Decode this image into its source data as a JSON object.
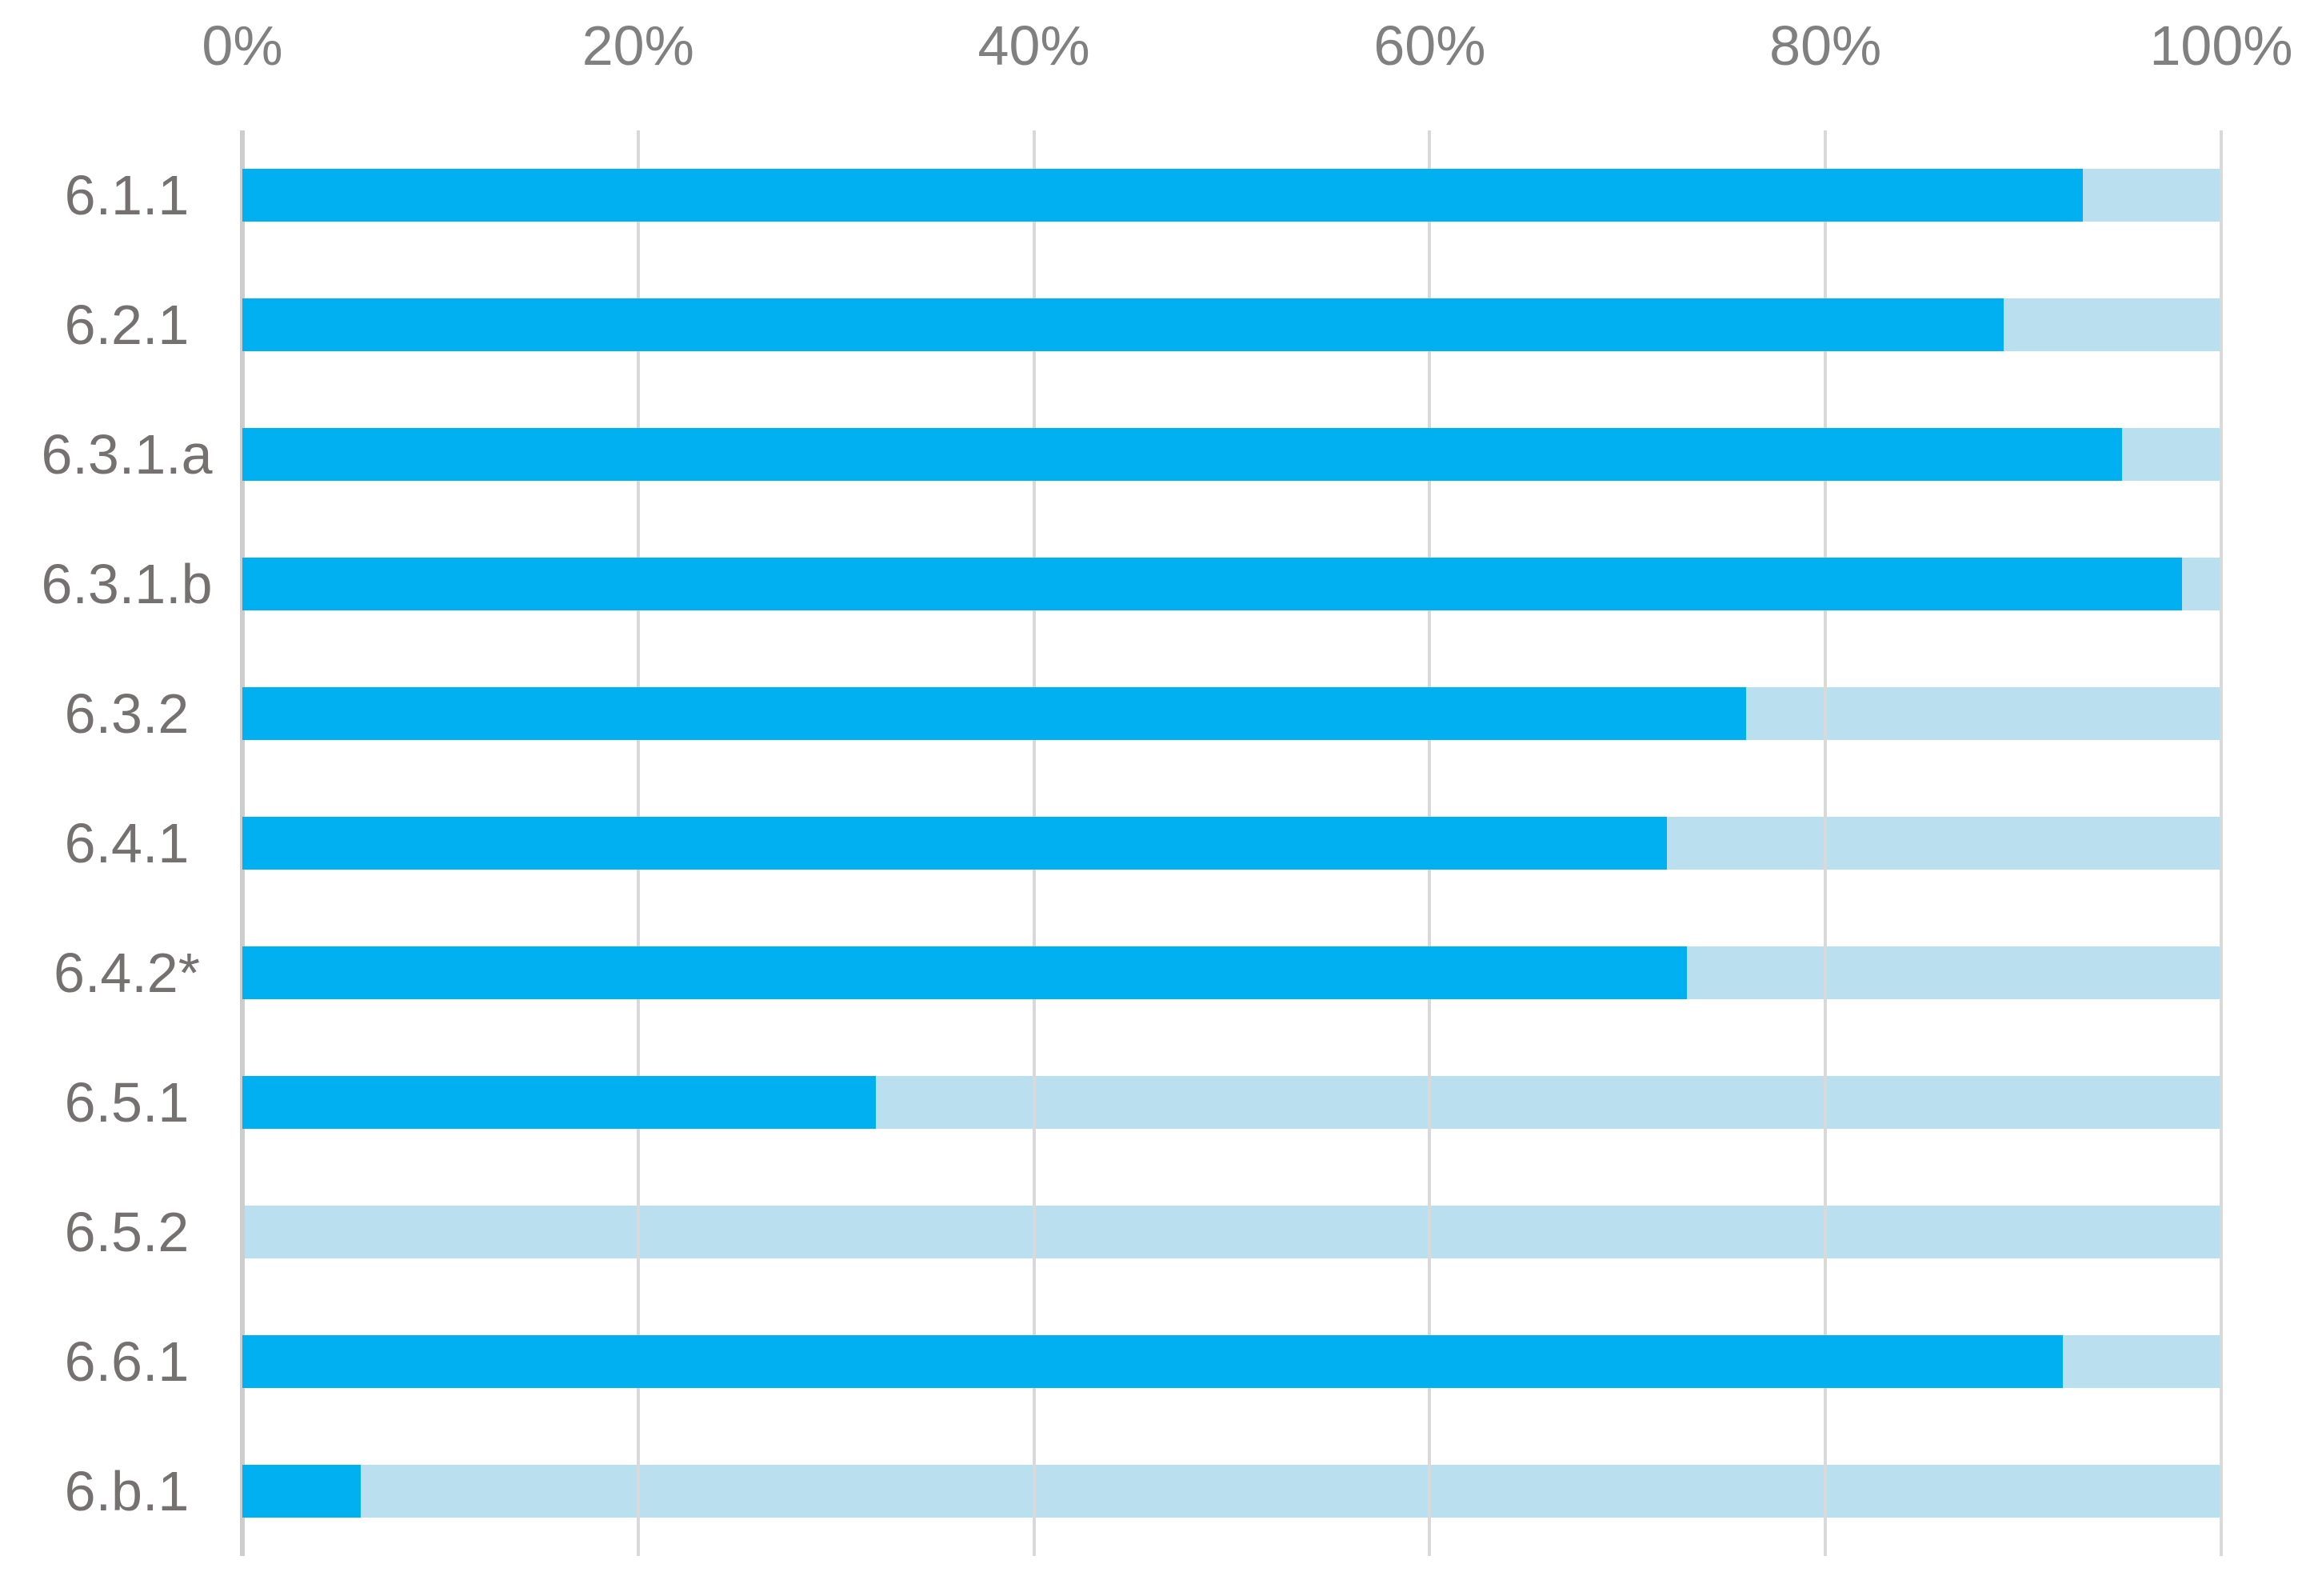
{
  "chart_data": {
    "type": "bar",
    "orientation": "horizontal",
    "stacked": true,
    "title": "",
    "categories": [
      "6.1.1",
      "6.2.1",
      "6.3.1.a",
      "6.3.1.b",
      "6.3.2",
      "6.4.1",
      "6.4.2*",
      "6.5.1",
      "6.5.2",
      "6.6.1",
      "6.b.1"
    ],
    "series": [
      {
        "name": "dark-blue",
        "color": "#00B0F0",
        "values": [
          93,
          89,
          95,
          98,
          76,
          72,
          73,
          32,
          0,
          92,
          6
        ]
      },
      {
        "name": "light-blue",
        "color": "#BADFEF",
        "values": [
          7,
          11,
          5,
          2,
          24,
          28,
          27,
          68,
          100,
          8,
          94
        ]
      }
    ],
    "x_axis": {
      "position": "top",
      "min": 0,
      "max": 100,
      "tick_labels": [
        "0%",
        "20%",
        "40%",
        "60%",
        "80%",
        "100%"
      ],
      "tick_values": [
        0,
        20,
        40,
        60,
        80,
        100
      ]
    },
    "y_axis": {
      "label": ""
    },
    "grid": true,
    "legend": false
  },
  "colors": {
    "grid_line": "#D9D9D9",
    "axis_line": "#CDCDCD",
    "tick_label": "#808080",
    "category_label": "#767171",
    "background": "#FFFFFF"
  }
}
